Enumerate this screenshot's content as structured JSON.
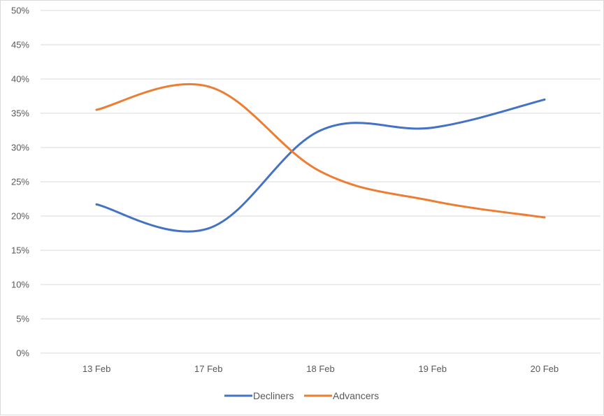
{
  "chart_data": {
    "type": "line",
    "smooth": true,
    "title": "",
    "xlabel": "",
    "ylabel": "",
    "categories": [
      "13 Feb",
      "17 Feb",
      "18 Feb",
      "19 Feb",
      "20 Feb"
    ],
    "ylim": [
      0,
      50
    ],
    "y_ticks": [
      "0%",
      "5%",
      "10%",
      "15%",
      "20%",
      "25%",
      "30%",
      "35%",
      "40%",
      "45%",
      "50%"
    ],
    "y_tick_values": [
      0,
      5,
      10,
      15,
      20,
      25,
      30,
      35,
      40,
      45,
      50
    ],
    "y_unit": "%",
    "grid": true,
    "legend_position": "bottom",
    "series": [
      {
        "name": "Decliners",
        "color": "#4472c4",
        "values": [
          21.7,
          18.2,
          32.5,
          32.9,
          37.0
        ]
      },
      {
        "name": "Advancers",
        "color": "#ed7d31",
        "values": [
          35.5,
          38.9,
          26.5,
          22.2,
          19.8
        ]
      }
    ]
  }
}
